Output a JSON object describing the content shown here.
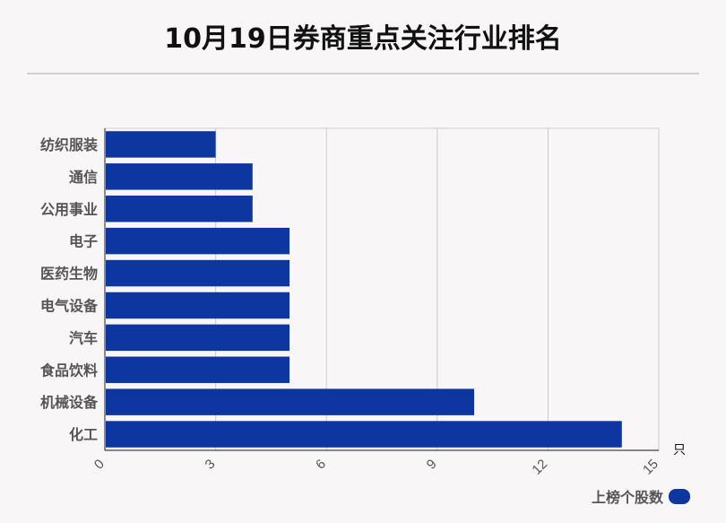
{
  "chart_data": {
    "type": "bar",
    "orientation": "horizontal",
    "title": "10月19日券商重点关注行业排名",
    "categories": [
      "纺织服装",
      "通信",
      "公用事业",
      "电子",
      "医药生物",
      "电气设备",
      "汽车",
      "食品饮料",
      "机械设备",
      "化工"
    ],
    "series": [
      {
        "name": "上榜个股数",
        "values": [
          3,
          4,
          4,
          5,
          5,
          5,
          5,
          5,
          10,
          14
        ]
      }
    ],
    "xlim": [
      0,
      15
    ],
    "xticks": [
      "0",
      "3",
      "6",
      "9",
      "12",
      "15"
    ],
    "unit": "只",
    "grid": true,
    "legend_position": "bottom-right",
    "colors": {
      "bar": "#0e36a0",
      "background": "#f9f6f8"
    }
  }
}
